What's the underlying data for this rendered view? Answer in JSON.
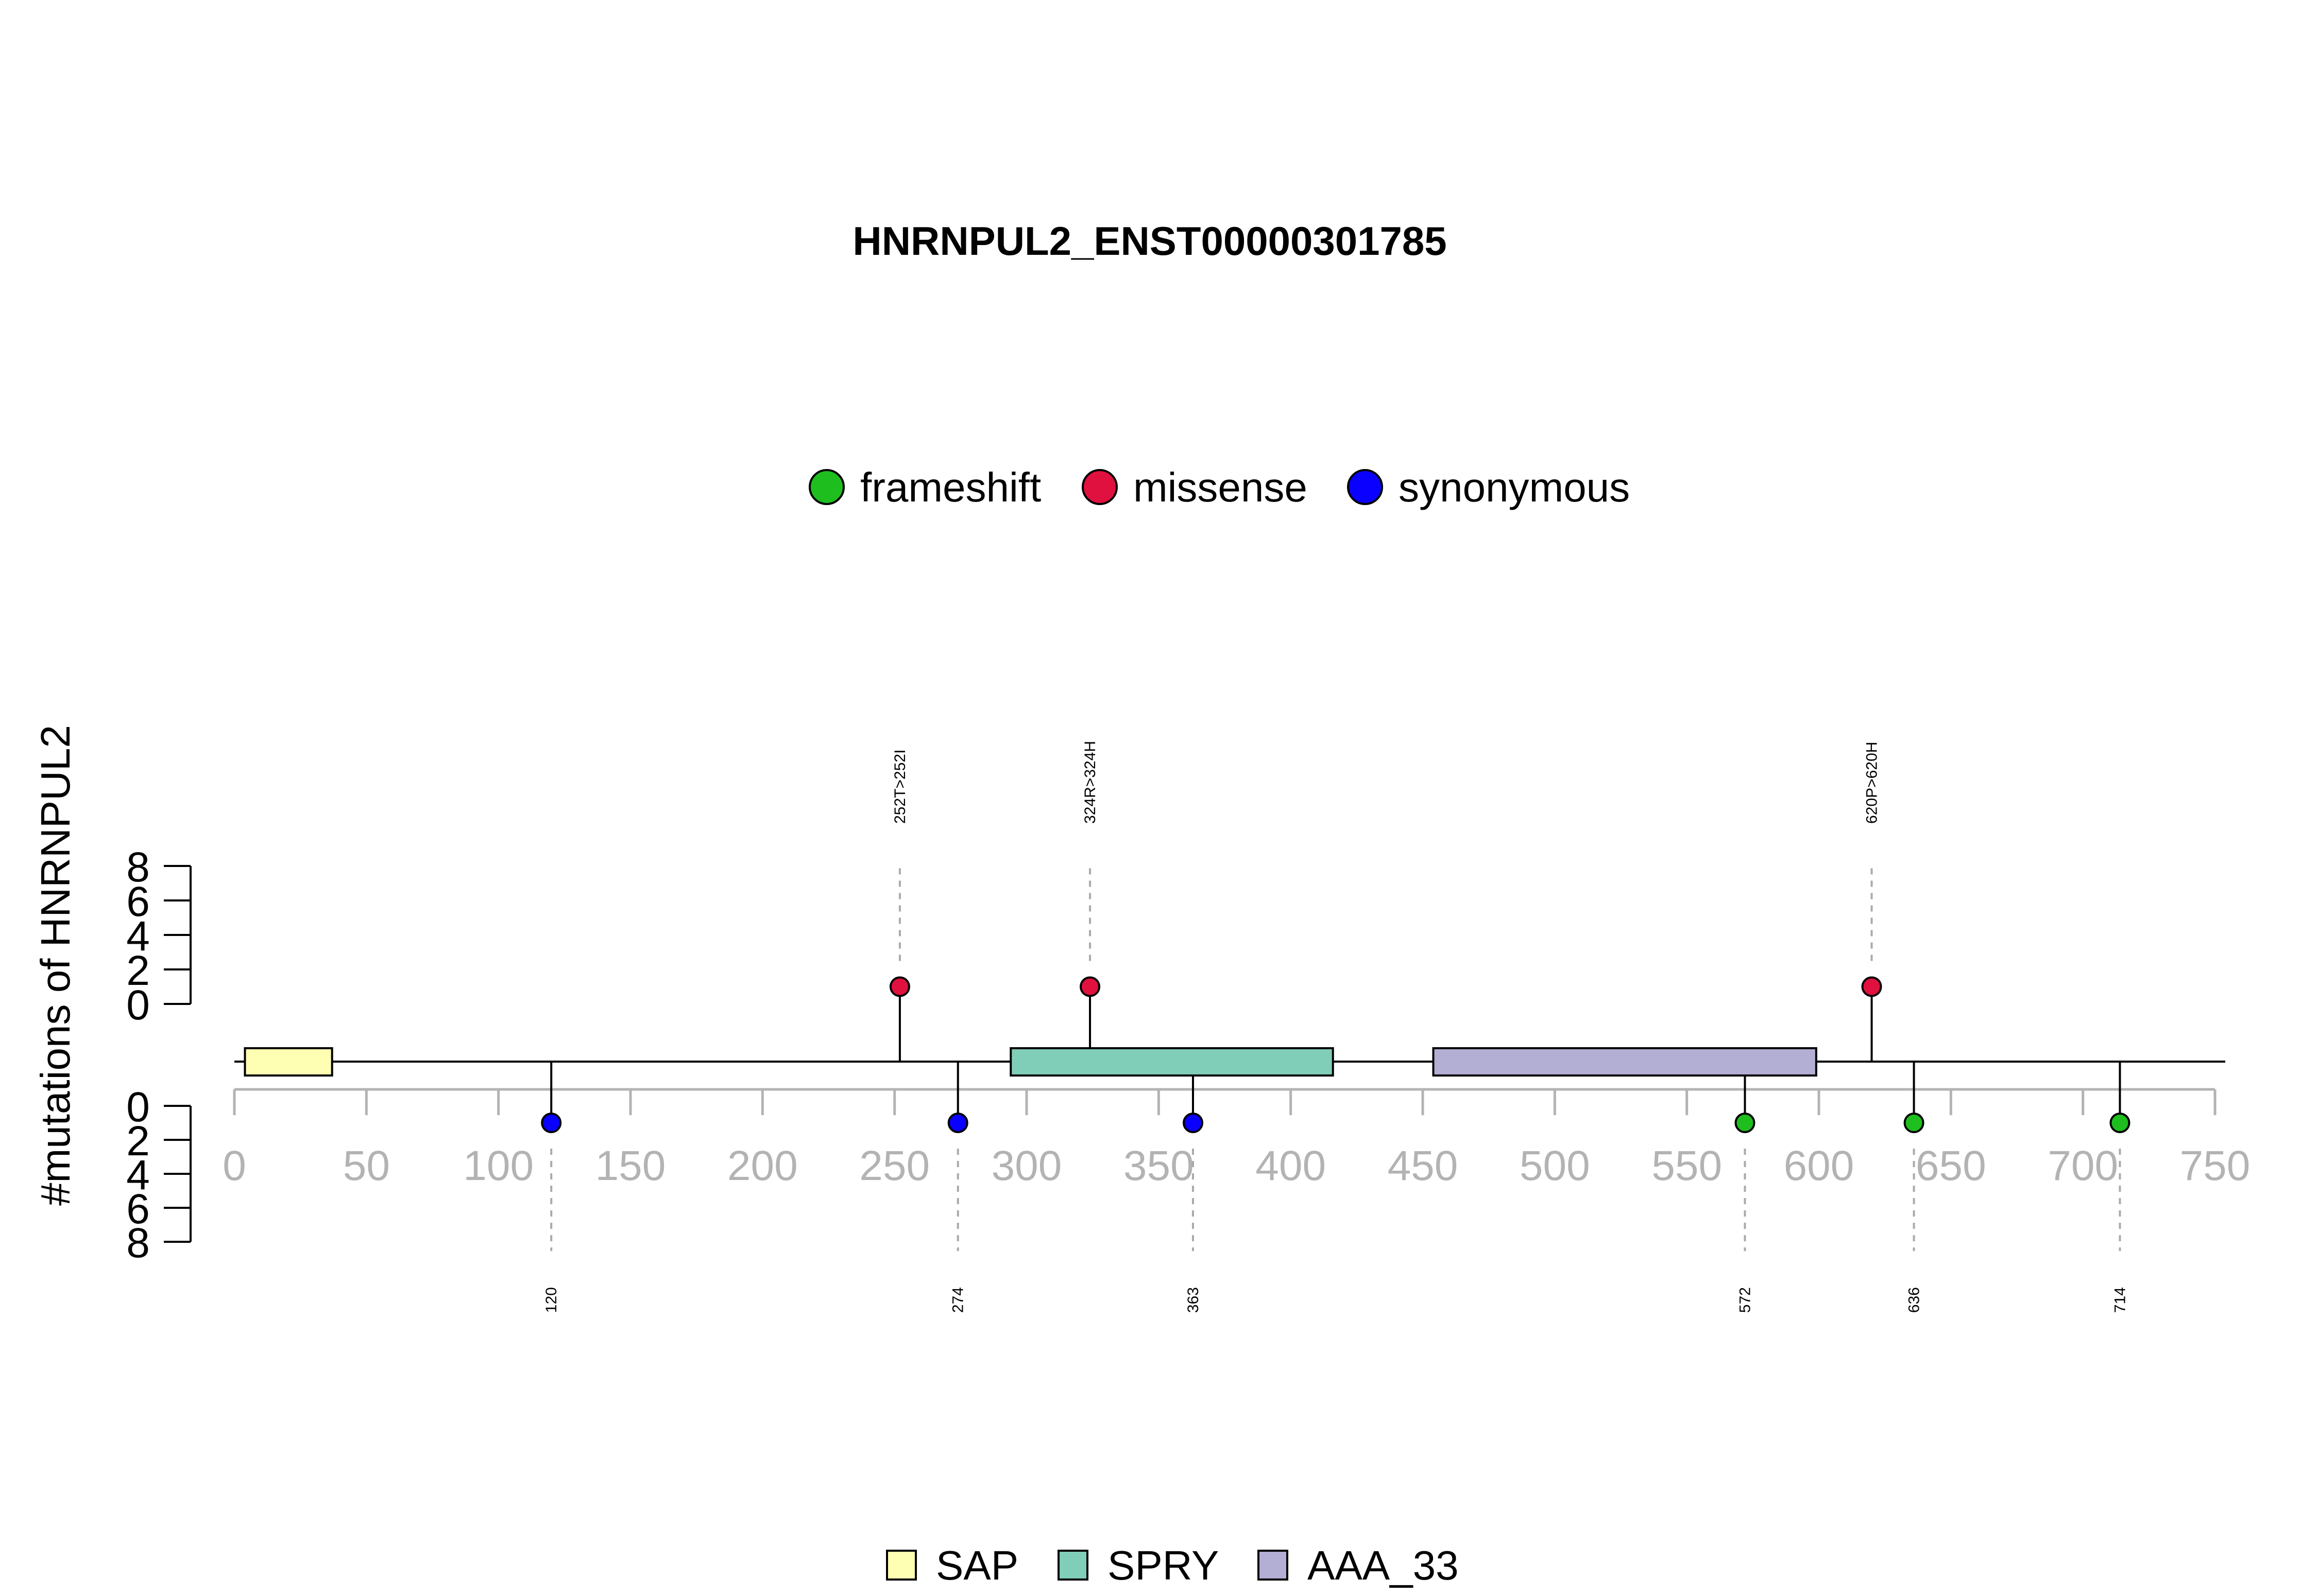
{
  "chart_data": {
    "type": "lollipop",
    "title": "HNRNPUL2_ENST00000301785",
    "ylabel": "#mutations of HNRNPUL2",
    "protein_length": 750,
    "xlim": [
      0,
      750
    ],
    "x_ticks": [
      0,
      50,
      100,
      150,
      200,
      250,
      300,
      350,
      400,
      450,
      500,
      550,
      600,
      650,
      700,
      750
    ],
    "y_ticks_top": [
      0,
      2,
      4,
      6,
      8
    ],
    "y_ticks_bottom": [
      0,
      2,
      4,
      6,
      8
    ],
    "ylim": [
      0,
      8
    ],
    "mutation_legend": [
      {
        "label": "frameshift",
        "color": "#1ebe1e"
      },
      {
        "label": "missense",
        "color": "#e0113f"
      },
      {
        "label": "synonymous",
        "color": "#0a00ff"
      }
    ],
    "domain_legend": [
      {
        "label": "SAP",
        "color": "#ffffb3"
      },
      {
        "label": "SPRY",
        "color": "#80cdb8"
      },
      {
        "label": "AAA_33",
        "color": "#b3aed4"
      }
    ],
    "domains": [
      {
        "name": "SAP",
        "start": 4,
        "end": 37
      },
      {
        "name": "SPRY",
        "start": 294,
        "end": 416
      },
      {
        "name": "AAA_33",
        "start": 454,
        "end": 599
      }
    ],
    "mutations_top": [
      {
        "position": 252,
        "count": 1,
        "type": "missense",
        "label": "252T>252I"
      },
      {
        "position": 324,
        "count": 1,
        "type": "missense",
        "label": "324R>324H"
      },
      {
        "position": 620,
        "count": 1,
        "type": "missense",
        "label": "620P>620H"
      }
    ],
    "mutations_bottom": [
      {
        "position": 120,
        "count": 1,
        "type": "synonymous",
        "label": "120"
      },
      {
        "position": 274,
        "count": 1,
        "type": "synonymous",
        "label": "274"
      },
      {
        "position": 363,
        "count": 1,
        "type": "synonymous",
        "label": "363"
      },
      {
        "position": 572,
        "count": 1,
        "type": "frameshift",
        "label": "572"
      },
      {
        "position": 636,
        "count": 1,
        "type": "frameshift",
        "label": "636"
      },
      {
        "position": 714,
        "count": 1,
        "type": "frameshift",
        "label": "714"
      }
    ]
  }
}
